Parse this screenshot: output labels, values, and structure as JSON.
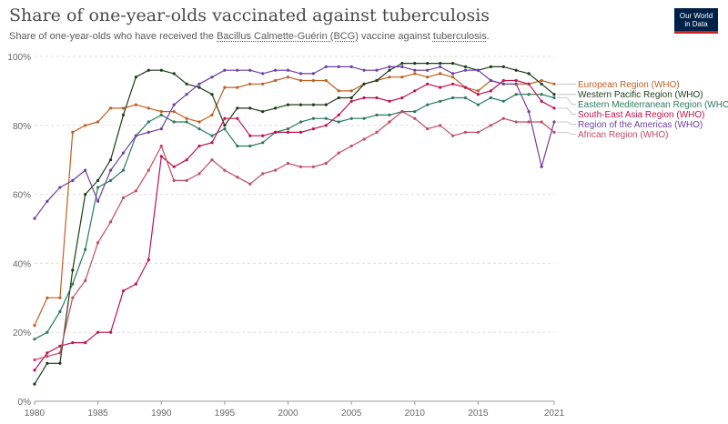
{
  "header": {
    "title": "Share of one-year-olds vaccinated against tuberculosis",
    "subtitle_before": "Share of one-year-olds who have received the ",
    "subtitle_link1": "Bacillus Calmette-Guérin (BCG)",
    "subtitle_middle": " vaccine against ",
    "subtitle_link2": "tuberculosis",
    "subtitle_after": "."
  },
  "logo": {
    "line1": "Our World",
    "line2": "in Data"
  },
  "colors": {
    "brand": "#002147",
    "accent": "#ce261e",
    "grid": "#dddddd",
    "axis_text": "#666666"
  },
  "chart_data": {
    "type": "line",
    "title": "Share of one-year-olds vaccinated against tuberculosis",
    "xlabel": "",
    "ylabel": "",
    "xlim": [
      1980,
      2021
    ],
    "ylim": [
      0,
      100
    ],
    "x_ticks": [
      1980,
      1985,
      1990,
      1995,
      2000,
      2005,
      2010,
      2015,
      2021
    ],
    "y_ticks": [
      0,
      20,
      40,
      60,
      80,
      100
    ],
    "y_tick_labels": [
      "0%",
      "20%",
      "40%",
      "60%",
      "80%",
      "100%"
    ],
    "grid": "horizontal-dashed",
    "legend": "right-end-labels",
    "x": [
      1980,
      1981,
      1982,
      1983,
      1984,
      1985,
      1986,
      1987,
      1988,
      1989,
      1990,
      1991,
      1992,
      1993,
      1994,
      1995,
      1996,
      1997,
      1998,
      1999,
      2000,
      2001,
      2002,
      2003,
      2004,
      2005,
      2006,
      2007,
      2008,
      2009,
      2010,
      2011,
      2012,
      2013,
      2014,
      2015,
      2016,
      2017,
      2018,
      2019,
      2020,
      2021
    ],
    "series": [
      {
        "name": "European Region (WHO)",
        "color": "#c15e1f",
        "values": [
          22,
          30,
          30,
          78,
          80,
          81,
          85,
          85,
          86,
          85,
          84,
          84,
          82,
          81,
          83,
          91,
          91,
          92,
          92,
          93,
          94,
          93,
          93,
          93,
          90,
          90,
          92,
          93,
          94,
          94,
          95,
          94,
          95,
          94,
          91,
          90,
          93,
          92,
          92,
          92,
          93,
          92
        ]
      },
      {
        "name": "Western Pacific Region (WHO)",
        "color": "#1c3d16",
        "values": [
          5,
          11,
          11,
          38,
          60,
          64,
          70,
          83,
          94,
          96,
          96,
          95,
          92,
          91,
          89,
          80,
          85,
          85,
          84,
          85,
          86,
          86,
          86,
          86,
          88,
          88,
          92,
          93,
          96,
          98,
          98,
          98,
          98,
          98,
          97,
          96,
          97,
          97,
          96,
          95,
          92,
          89
        ]
      },
      {
        "name": "Eastern Mediterranean Region (WHO)",
        "color": "#2a7a5a",
        "values": [
          18,
          20,
          26,
          34,
          44,
          62,
          64,
          67,
          77,
          81,
          83,
          81,
          81,
          79,
          77,
          79,
          74,
          74,
          75,
          78,
          79,
          81,
          82,
          82,
          81,
          82,
          82,
          83,
          83,
          84,
          84,
          86,
          87,
          88,
          88,
          86,
          88,
          87,
          89,
          89,
          89,
          88
        ]
      },
      {
        "name": "South-East Asia Region (WHO)",
        "color": "#c0124f",
        "values": [
          9,
          14,
          16,
          17,
          17,
          20,
          20,
          32,
          34,
          41,
          71,
          68,
          70,
          74,
          75,
          82,
          82,
          77,
          77,
          78,
          78,
          78,
          79,
          80,
          83,
          87,
          88,
          88,
          87,
          88,
          90,
          92,
          91,
          92,
          91,
          89,
          90,
          93,
          93,
          92,
          87,
          85
        ]
      },
      {
        "name": "Region of the Americas (WHO)",
        "color": "#6d3fa5",
        "values": [
          53,
          58,
          62,
          64,
          67,
          58,
          67,
          72,
          77,
          78,
          79,
          86,
          89,
          92,
          94,
          96,
          96,
          96,
          95,
          96,
          96,
          95,
          95,
          97,
          97,
          97,
          96,
          96,
          97,
          97,
          96,
          96,
          97,
          95,
          96,
          96,
          93,
          92,
          92,
          84,
          68,
          81
        ]
      },
      {
        "name": "African Region (WHO)",
        "color": "#c44b64",
        "values": [
          12,
          13,
          14,
          30,
          35,
          46,
          52,
          59,
          61,
          67,
          74,
          64,
          64,
          66,
          70,
          67,
          65,
          63,
          66,
          67,
          69,
          68,
          68,
          69,
          72,
          74,
          76,
          78,
          81,
          84,
          82,
          79,
          80,
          77,
          78,
          78,
          80,
          82,
          81,
          81,
          81,
          78
        ]
      }
    ]
  }
}
